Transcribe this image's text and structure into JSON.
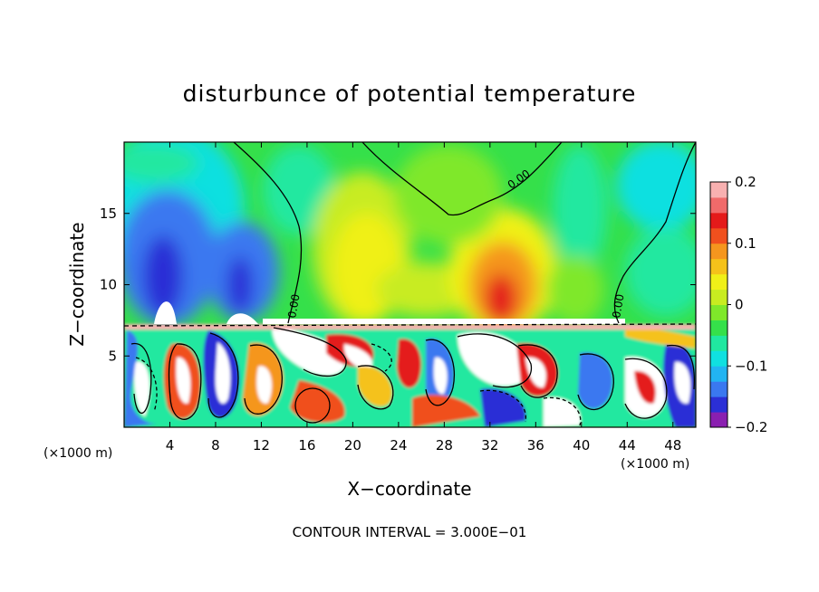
{
  "chart_data": {
    "type": "heatmap",
    "title": "disturbunce of potential temperature",
    "xlabel": "X−coordinate",
    "ylabel": "Z−coordinate",
    "x_unit_label_left": "(×1000 m)",
    "x_unit_label_right": "(×1000 m)",
    "x_ticks": [
      4,
      8,
      12,
      16,
      20,
      24,
      28,
      32,
      36,
      40,
      44,
      48
    ],
    "y_ticks": [
      5,
      10,
      15
    ],
    "xlim": [
      0,
      50
    ],
    "ylim": [
      0,
      20
    ],
    "colorbar": {
      "ticks": [
        {
          "value": 0.2,
          "label": "0.2"
        },
        {
          "value": 0.1,
          "label": "0.1"
        },
        {
          "value": 0.0,
          "label": "0"
        },
        {
          "value": -0.1,
          "label": "−0.1"
        },
        {
          "value": -0.2,
          "label": "−0.2"
        }
      ],
      "range": [
        -0.2,
        0.2
      ],
      "colors": [
        "#8a1fb0",
        "#2b2fd6",
        "#3a78f0",
        "#22b4f2",
        "#10e0e0",
        "#20e8a0",
        "#35e04a",
        "#7fe82a",
        "#c8ec20",
        "#f0f018",
        "#f5c21a",
        "#f5961e",
        "#f0501e",
        "#e41a1a",
        "#f06a6a",
        "#f8b0b0"
      ]
    },
    "contour_labels": [
      "0.00",
      "0.00",
      "0.00"
    ],
    "footer": "CONTOUR INTERVAL = 3.000E−01",
    "grid": false
  }
}
